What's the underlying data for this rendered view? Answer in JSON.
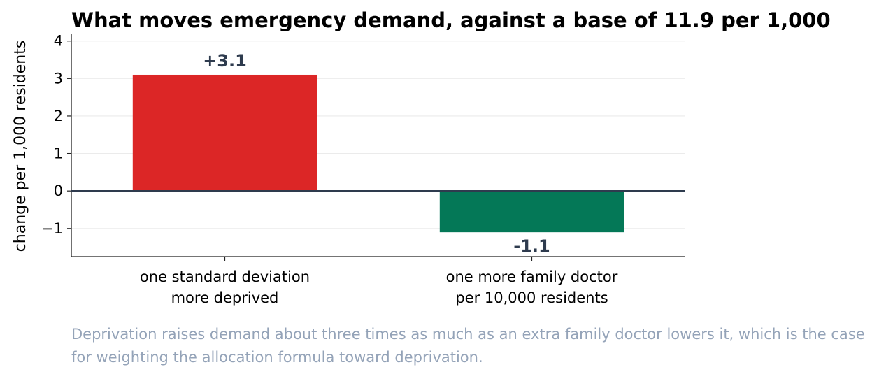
{
  "chart_data": {
    "type": "bar",
    "title": "What moves emergency demand, against a base of 11.9 per 1,000",
    "ylabel": "change per 1,000 residents",
    "xlabel": "",
    "ylim": [
      -1.75,
      4.2
    ],
    "yticks": [
      -1,
      0,
      1,
      2,
      3,
      4
    ],
    "ytick_labels": [
      "−1",
      "0",
      "1",
      "2",
      "3",
      "4"
    ],
    "grid": "horizontal",
    "categories": [
      [
        "one standard deviation",
        "more deprived"
      ],
      [
        "one more family doctor",
        "per 10,000 residents"
      ]
    ],
    "values": [
      3.1,
      -1.1
    ],
    "data_labels": [
      "+3.1",
      "-1.1"
    ],
    "colors": [
      "#dc2626",
      "#047857"
    ],
    "zero_line_color": "#2e3b4e",
    "label_color": "#2e3b4e"
  },
  "caption": "Deprivation raises demand about three times as much as an extra family doctor lowers it, which is the case for weighting the allocation formula toward deprivation."
}
